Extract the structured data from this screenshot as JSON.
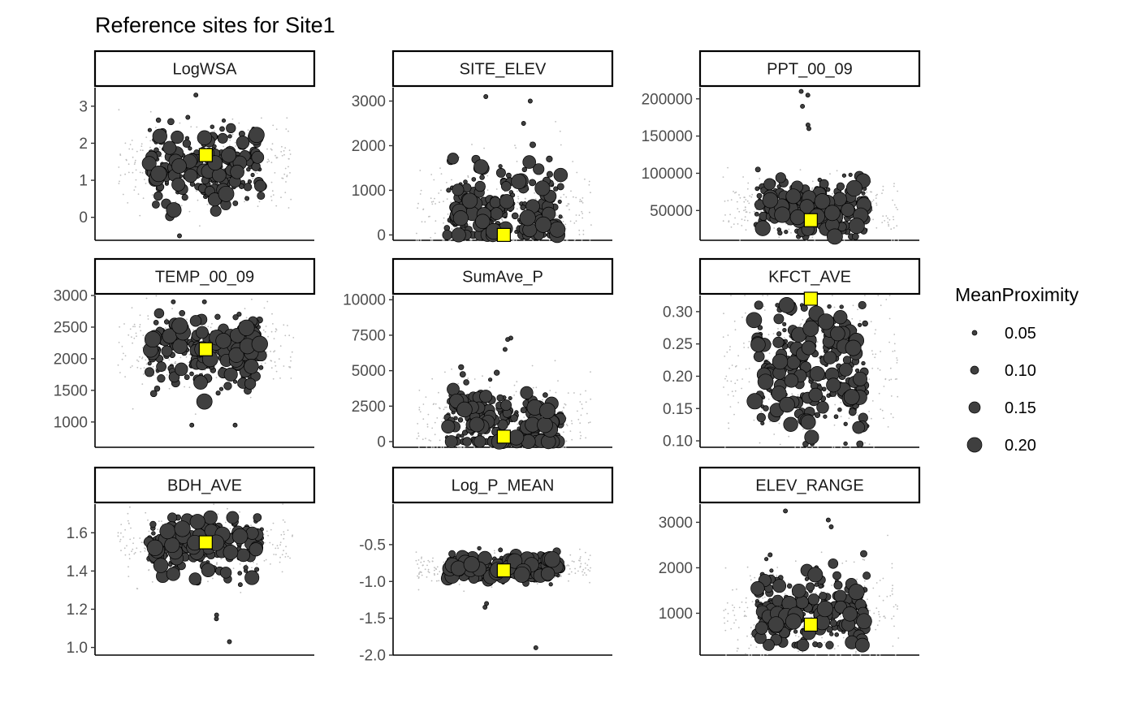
{
  "title": "Reference sites for Site1",
  "legend": {
    "title": "MeanProximity",
    "placement": "right",
    "entries": [
      {
        "label": "0.05",
        "value": 0.05
      },
      {
        "label": "0.10",
        "value": 0.1
      },
      {
        "label": "0.15",
        "value": 0.15
      },
      {
        "label": "0.20",
        "value": 0.2
      }
    ]
  },
  "colors": {
    "point_fill": "#3f3f3f",
    "point_stroke": "#000000",
    "background_point": "#bdbdbd",
    "site_marker": "#ffff00"
  },
  "chart_data": [
    {
      "type": "scatter",
      "facet": "LogWSA",
      "ylim": [
        -0.62,
        3.5
      ],
      "ticks": [
        {
          "v": 0,
          "label": "0"
        },
        {
          "v": 1,
          "label": "1"
        },
        {
          "v": 2,
          "label": "2"
        },
        {
          "v": 3,
          "label": "3"
        }
      ],
      "center": 1.35,
      "spread": 0.5,
      "min": -0.5,
      "max": 3.3,
      "site_value": 1.68,
      "outliers": [
        -0.5,
        3.3,
        2.7
      ]
    },
    {
      "type": "scatter",
      "facet": "SITE_ELEV",
      "ylim": [
        -120,
        3300
      ],
      "ticks": [
        {
          "v": 0,
          "label": "0"
        },
        {
          "v": 1000,
          "label": "1000"
        },
        {
          "v": 2000,
          "label": "2000"
        },
        {
          "v": 3000,
          "label": "3000"
        }
      ],
      "center": 500,
      "spread": 550,
      "min": 0,
      "max": 3100,
      "site_value": 0,
      "outliers": [
        3100,
        3000,
        2500
      ]
    },
    {
      "type": "scatter",
      "facet": "PPT_00_09",
      "ylim": [
        10000,
        215000
      ],
      "ticks": [
        {
          "v": 50000,
          "label": "50000"
        },
        {
          "v": 100000,
          "label": "100000"
        },
        {
          "v": 150000,
          "label": "150000"
        },
        {
          "v": 200000,
          "label": "200000"
        }
      ],
      "center": 52000,
      "spread": 18000,
      "min": 15000,
      "max": 210000,
      "site_value": 37000,
      "outliers": [
        210000,
        205000,
        190000,
        165000,
        160000
      ]
    },
    {
      "type": "scatter",
      "facet": "TEMP_00_09",
      "ylim": [
        600,
        3000
      ],
      "ticks": [
        {
          "v": 1000,
          "label": "1000"
        },
        {
          "v": 1500,
          "label": "1500"
        },
        {
          "v": 2000,
          "label": "2000"
        },
        {
          "v": 2500,
          "label": "2500"
        },
        {
          "v": 3000,
          "label": "3000"
        }
      ],
      "center": 2150,
      "spread": 280,
      "min": 950,
      "max": 2900,
      "site_value": 2150,
      "outliers": [
        2900,
        2900,
        950,
        950
      ]
    },
    {
      "type": "scatter",
      "facet": "SumAve_P",
      "ylim": [
        -400,
        10300
      ],
      "ticks": [
        {
          "v": 0,
          "label": "0"
        },
        {
          "v": 2500,
          "label": "2500"
        },
        {
          "v": 5000,
          "label": "5000"
        },
        {
          "v": 7500,
          "label": "7500"
        },
        {
          "v": 10000,
          "label": "10000"
        }
      ],
      "center": 1200,
      "spread": 1500,
      "min": 0,
      "max": 7300,
      "site_value": 350,
      "outliers": [
        7300,
        7200,
        6500
      ]
    },
    {
      "type": "scatter",
      "facet": "KFCT_AVE",
      "ylim": [
        0.09,
        0.325
      ],
      "ticks": [
        {
          "v": 0.1,
          "label": "0.10"
        },
        {
          "v": 0.15,
          "label": "0.15"
        },
        {
          "v": 0.2,
          "label": "0.20"
        },
        {
          "v": 0.25,
          "label": "0.25"
        },
        {
          "v": 0.3,
          "label": "0.30"
        }
      ],
      "center": 0.21,
      "spread": 0.055,
      "min": 0.095,
      "max": 0.31,
      "site_value": 0.32,
      "outliers": []
    },
    {
      "type": "scatter",
      "facet": "BDH_AVE",
      "ylim": [
        0.96,
        1.75
      ],
      "ticks": [
        {
          "v": 1.0,
          "label": "1.0"
        },
        {
          "v": 1.2,
          "label": "1.2"
        },
        {
          "v": 1.4,
          "label": "1.4"
        },
        {
          "v": 1.6,
          "label": "1.6"
        }
      ],
      "center": 1.54,
      "spread": 0.07,
      "min": 1.03,
      "max": 1.68,
      "site_value": 1.55,
      "outliers": [
        1.03,
        1.15,
        1.17
      ]
    },
    {
      "type": "scatter",
      "facet": "Log_P_MEAN",
      "ylim": [
        -2.0,
        0.05
      ],
      "ticks": [
        {
          "v": -2.0,
          "label": "-2.0"
        },
        {
          "v": -1.5,
          "label": "-1.5"
        },
        {
          "v": -1.0,
          "label": "-1.0"
        },
        {
          "v": -0.5,
          "label": "-0.5"
        }
      ],
      "center": -0.82,
      "spread": 0.09,
      "min": -1.9,
      "max": -0.55,
      "site_value": -0.85,
      "outliers": [
        -1.9,
        -1.35,
        -1.3
      ]
    },
    {
      "type": "scatter",
      "facet": "ELEV_RANGE",
      "ylim": [
        80,
        3400
      ],
      "ticks": [
        {
          "v": 1000,
          "label": "1000"
        },
        {
          "v": 2000,
          "label": "2000"
        },
        {
          "v": 3000,
          "label": "3000"
        }
      ],
      "center": 1050,
      "spread": 450,
      "min": 300,
      "max": 3250,
      "site_value": 750,
      "outliers": [
        3250,
        3050,
        2900
      ]
    }
  ]
}
